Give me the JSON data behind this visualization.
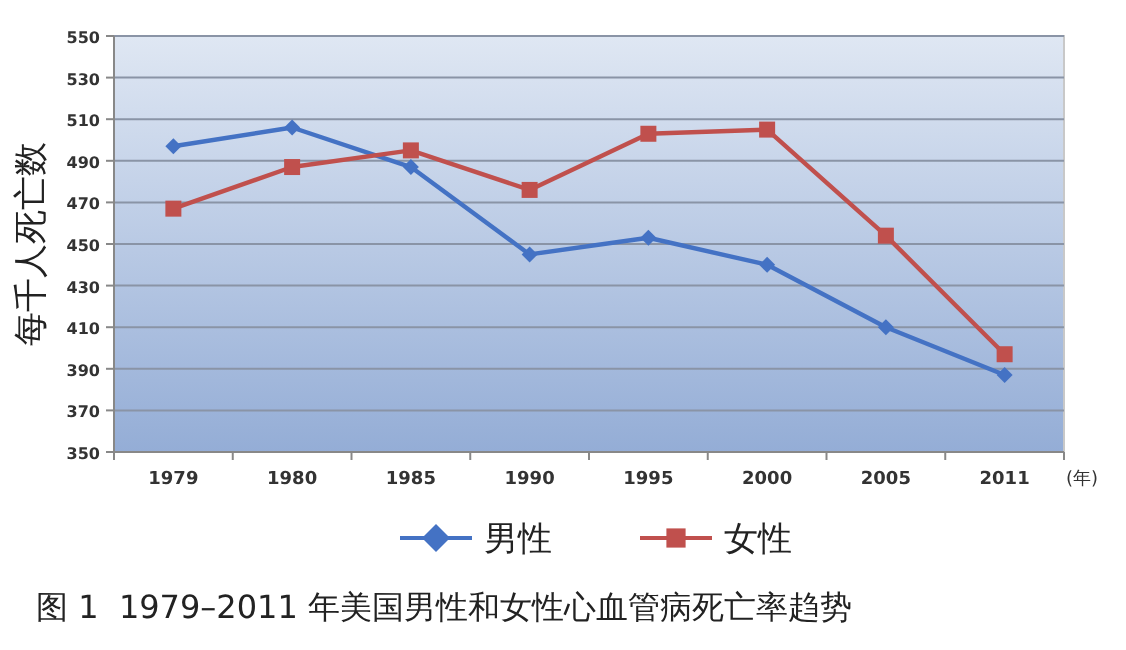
{
  "chart_data": {
    "type": "line",
    "title": "图 1  1979–2011 年美国男性和女性心血管病死亡率趋势",
    "ylabel": "每千人死亡数",
    "xlabel": "(年)",
    "categories": [
      "1979",
      "1980",
      "1985",
      "1990",
      "1995",
      "2000",
      "2005",
      "2011"
    ],
    "series": [
      {
        "name": "男性",
        "color": "#4472c4",
        "marker": "diamond",
        "values": [
          497,
          506,
          487,
          445,
          453,
          440,
          410,
          387
        ]
      },
      {
        "name": "女性",
        "color": "#c0504d",
        "marker": "square",
        "values": [
          467,
          487,
          495,
          476,
          503,
          505,
          454,
          397
        ]
      }
    ],
    "ylim": [
      350,
      550
    ],
    "yticks": [
      350,
      370,
      390,
      410,
      430,
      450,
      470,
      490,
      510,
      530,
      550
    ],
    "grid": "y",
    "legend": "bottom",
    "line_style": "solid"
  }
}
